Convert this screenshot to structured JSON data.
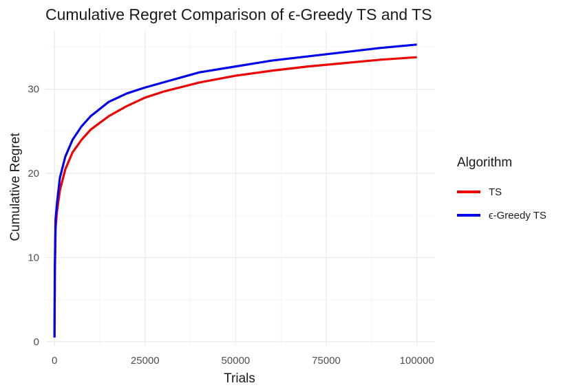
{
  "chart_data": {
    "type": "line",
    "title": "Cumulative Regret Comparison of ϵ-Greedy TS and TS",
    "xlabel": "Trials",
    "ylabel": "Cumulative Regret",
    "xlim": [
      -2500,
      105000
    ],
    "ylim": [
      -0.5,
      37
    ],
    "x_ticks": [
      0,
      25000,
      50000,
      75000,
      100000
    ],
    "x_tick_labels": [
      "0",
      "25000",
      "50000",
      "75000",
      "100000"
    ],
    "y_ticks": [
      0,
      10,
      20,
      30
    ],
    "y_tick_labels": [
      "0",
      "10",
      "20",
      "30"
    ],
    "grid": true,
    "legend_title": "Algorithm",
    "legend_position": "right",
    "x": [
      1,
      100,
      300,
      700,
      1500,
      3000,
      5000,
      7500,
      10000,
      15000,
      20000,
      25000,
      30000,
      40000,
      50000,
      60000,
      70000,
      80000,
      90000,
      100000
    ],
    "series": [
      {
        "name": "TS",
        "color": "#ee0000",
        "values": [
          0.5,
          8.0,
          13.5,
          15.5,
          18.0,
          20.5,
          22.5,
          24.0,
          25.2,
          26.8,
          28.0,
          29.0,
          29.7,
          30.8,
          31.6,
          32.2,
          32.7,
          33.1,
          33.5,
          33.8
        ]
      },
      {
        "name": "ϵ-Greedy TS",
        "color": "#0000ee",
        "values": [
          0.5,
          9.0,
          14.5,
          16.5,
          19.5,
          22.0,
          24.0,
          25.6,
          26.8,
          28.5,
          29.5,
          30.2,
          30.8,
          32.0,
          32.7,
          33.4,
          33.9,
          34.4,
          34.9,
          35.3
        ]
      }
    ]
  }
}
